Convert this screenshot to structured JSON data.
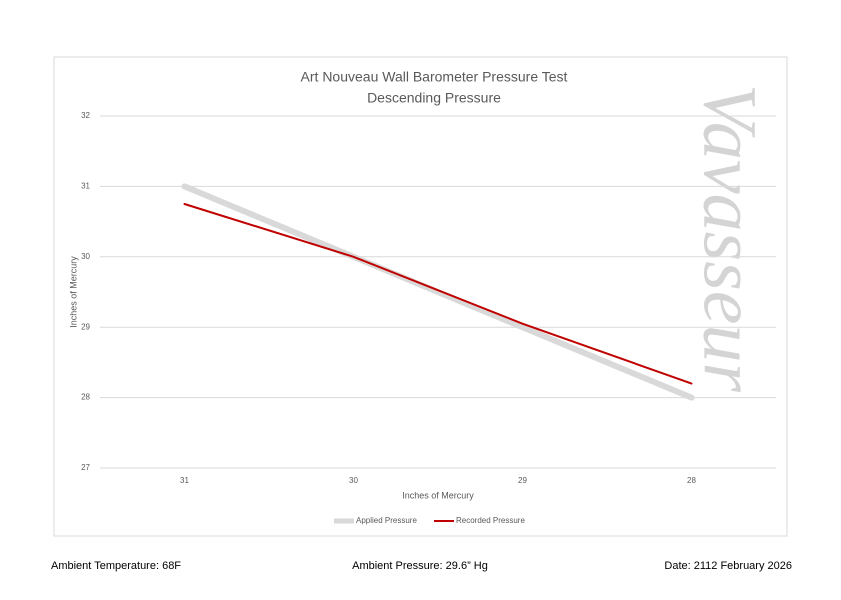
{
  "chart_data": {
    "type": "line",
    "title": "Art Nouveau Wall Barometer Pressure Test",
    "subtitle": "Descending Pressure",
    "watermark": "Vavasseur",
    "x_label": "Inches of Mercury",
    "y_label": "Inches of Mercury",
    "categories": [
      "31",
      "30",
      "29",
      "28"
    ],
    "series": [
      {
        "name": "Applied Pressure",
        "color": "#d9d9d9",
        "values": [
          31,
          30,
          29,
          28
        ]
      },
      {
        "name": "Recorded Pressure",
        "color": "#c00000",
        "values": [
          30.75,
          30,
          29.05,
          28.2
        ]
      }
    ],
    "ylim": [
      27,
      32
    ],
    "yticks": [
      27,
      28,
      29,
      30,
      31,
      32
    ],
    "grid": true,
    "legend": "bottom"
  },
  "footer": {
    "temperature": "Ambient Temperature: 68F",
    "pressure": "Ambient Pressure: 29.6” Hg",
    "date": "Date: 2112 February 2026"
  }
}
